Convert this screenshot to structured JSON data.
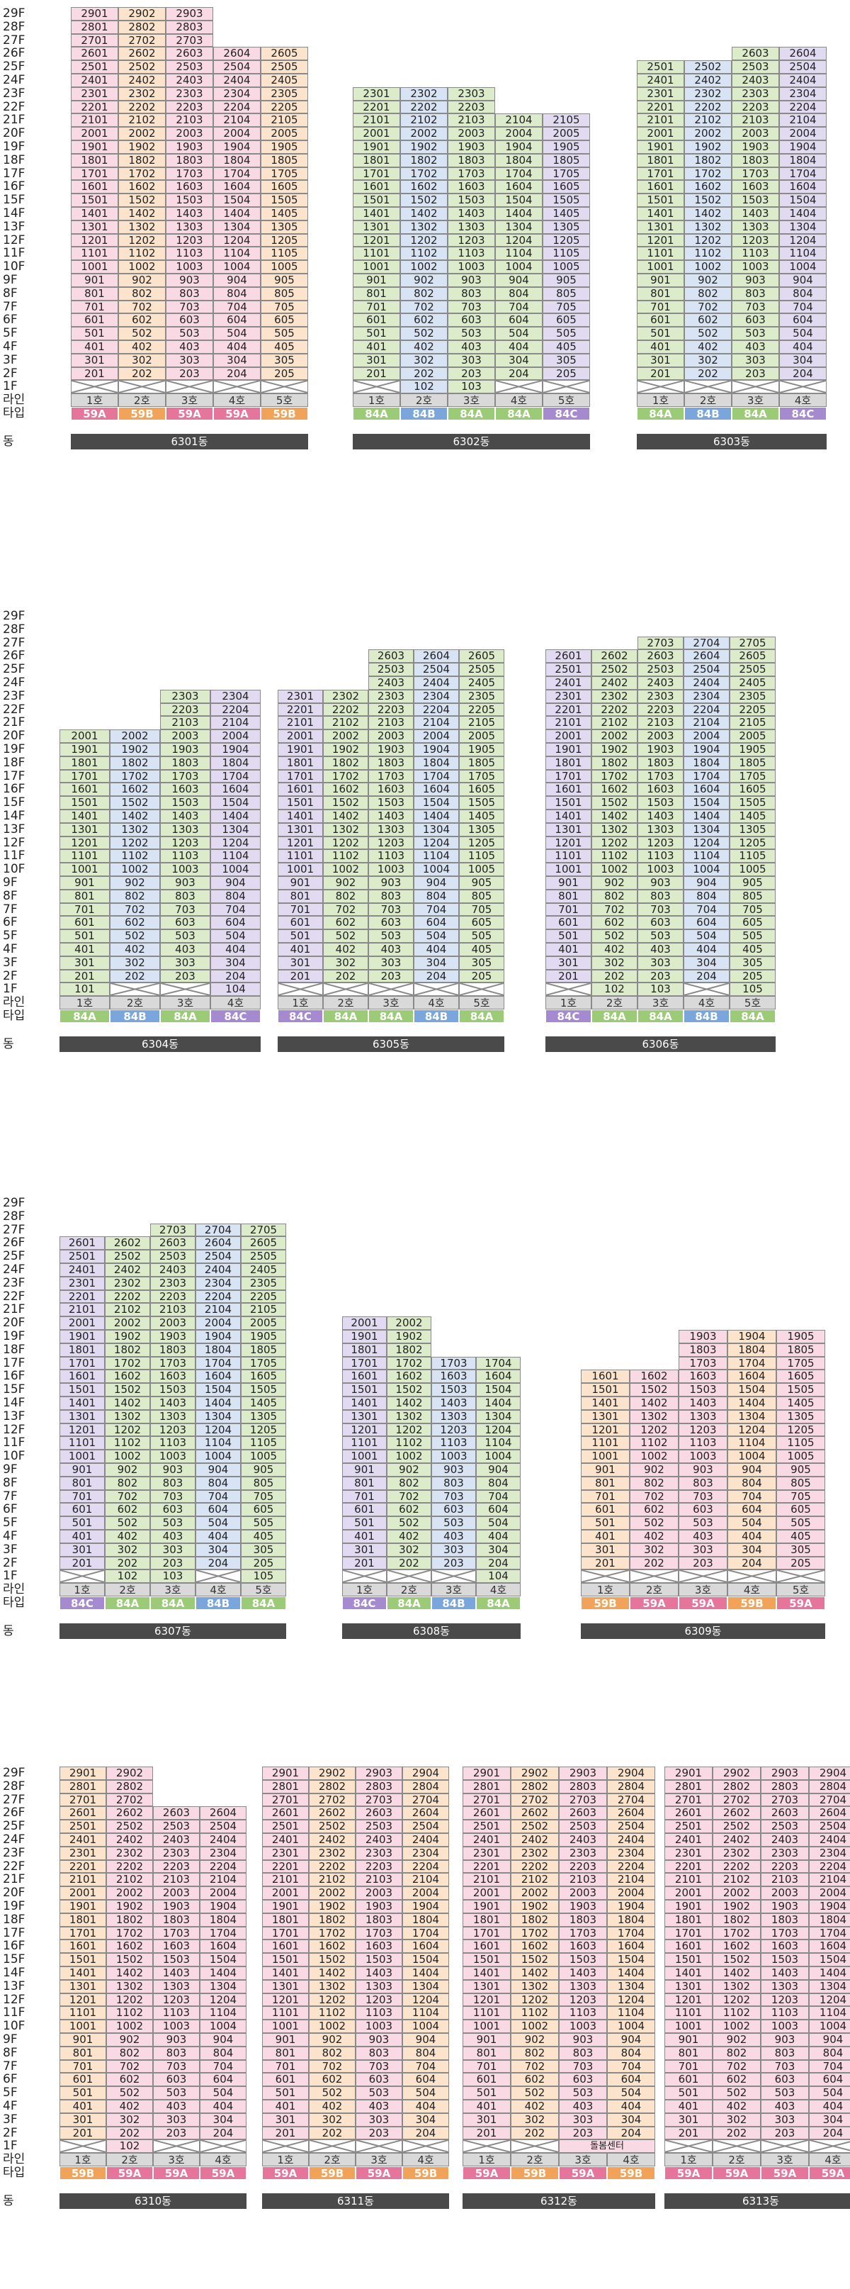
{
  "labels": {
    "line": "라인",
    "type": "타입",
    "dong": "동"
  },
  "colors": {
    "59A": "#e6759b",
    "59B": "#f2a35a",
    "84A": "#9ccb78",
    "84B": "#7aa6dc",
    "84C": "#a68ad0"
  },
  "floor_range": [
    1,
    29
  ],
  "sections": [
    {
      "buildings": [
        {
          "dong": "6301동",
          "lines": [
            {
              "ho": "1호",
              "type": "59A",
              "max": 29,
              "voidFloors": [
                1
              ]
            },
            {
              "ho": "2호",
              "type": "59B",
              "max": 29,
              "voidFloors": [
                1
              ]
            },
            {
              "ho": "3호",
              "type": "59A",
              "max": 29,
              "voidFloors": [
                1
              ]
            },
            {
              "ho": "4호",
              "type": "59A",
              "max": 26,
              "voidFloors": [
                1
              ]
            },
            {
              "ho": "5호",
              "type": "59B",
              "max": 26,
              "voidFloors": [
                1
              ]
            }
          ]
        },
        {
          "dong": "6302동",
          "lines": [
            {
              "ho": "1호",
              "type": "84A",
              "max": 23,
              "voidFloors": [
                1
              ]
            },
            {
              "ho": "2호",
              "type": "84B",
              "max": 23,
              "voidFloors": []
            },
            {
              "ho": "3호",
              "type": "84A",
              "max": 23,
              "voidFloors": []
            },
            {
              "ho": "4호",
              "type": "84A",
              "max": 21,
              "voidFloors": [
                1
              ]
            },
            {
              "ho": "5호",
              "type": "84C",
              "max": 21,
              "voidFloors": [
                1
              ]
            }
          ]
        },
        {
          "dong": "6303동",
          "lines": [
            {
              "ho": "1호",
              "type": "84A",
              "max": 25,
              "voidFloors": [
                1
              ]
            },
            {
              "ho": "2호",
              "type": "84B",
              "max": 25,
              "voidFloors": [
                1
              ]
            },
            {
              "ho": "3호",
              "type": "84A",
              "max": 26,
              "voidFloors": [
                1
              ]
            },
            {
              "ho": "4호",
              "type": "84C",
              "max": 26,
              "voidFloors": [
                1
              ]
            }
          ]
        }
      ]
    },
    {
      "buildings": [
        {
          "dong": "6304동",
          "lines": [
            {
              "ho": "1호",
              "type": "84A",
              "max": 20,
              "voidFloors": []
            },
            {
              "ho": "2호",
              "type": "84B",
              "max": 20,
              "voidFloors": [
                1
              ]
            },
            {
              "ho": "3호",
              "type": "84A",
              "max": 23,
              "voidFloors": [
                1
              ]
            },
            {
              "ho": "4호",
              "type": "84C",
              "max": 23,
              "voidFloors": []
            }
          ]
        },
        {
          "dong": "6305동",
          "lines": [
            {
              "ho": "1호",
              "type": "84C",
              "max": 23,
              "voidFloors": [
                1
              ]
            },
            {
              "ho": "2호",
              "type": "84A",
              "max": 23,
              "voidFloors": [
                1
              ]
            },
            {
              "ho": "3호",
              "type": "84A",
              "max": 26,
              "voidFloors": [
                1
              ]
            },
            {
              "ho": "4호",
              "type": "84B",
              "max": 26,
              "voidFloors": [
                1
              ]
            },
            {
              "ho": "5호",
              "type": "84A",
              "max": 26,
              "voidFloors": [
                1
              ]
            }
          ]
        },
        {
          "dong": "6306동",
          "lines": [
            {
              "ho": "1호",
              "type": "84C",
              "max": 26,
              "voidFloors": [
                1
              ]
            },
            {
              "ho": "2호",
              "type": "84A",
              "max": 26,
              "voidFloors": []
            },
            {
              "ho": "3호",
              "type": "84A",
              "max": 27,
              "voidFloors": []
            },
            {
              "ho": "4호",
              "type": "84B",
              "max": 27,
              "voidFloors": [
                1
              ]
            },
            {
              "ho": "5호",
              "type": "84A",
              "max": 27,
              "voidFloors": []
            }
          ]
        }
      ]
    },
    {
      "buildings": [
        {
          "dong": "6307동",
          "lines": [
            {
              "ho": "1호",
              "type": "84C",
              "max": 26,
              "voidFloors": [
                1
              ]
            },
            {
              "ho": "2호",
              "type": "84A",
              "max": 26,
              "voidFloors": []
            },
            {
              "ho": "3호",
              "type": "84A",
              "max": 27,
              "voidFloors": []
            },
            {
              "ho": "4호",
              "type": "84B",
              "max": 27,
              "voidFloors": [
                1
              ]
            },
            {
              "ho": "5호",
              "type": "84A",
              "max": 27,
              "voidFloors": []
            }
          ]
        },
        {
          "dong": "6308동",
          "lines": [
            {
              "ho": "1호",
              "type": "84C",
              "max": 20,
              "voidFloors": [
                1
              ]
            },
            {
              "ho": "2호",
              "type": "84A",
              "max": 20,
              "voidFloors": [
                1
              ]
            },
            {
              "ho": "3호",
              "type": "84B",
              "max": 17,
              "voidFloors": [
                1
              ]
            },
            {
              "ho": "4호",
              "type": "84A",
              "max": 17,
              "voidFloors": []
            }
          ]
        },
        {
          "dong": "6309동",
          "lines": [
            {
              "ho": "1호",
              "type": "59B",
              "max": 16,
              "voidFloors": [
                1
              ]
            },
            {
              "ho": "2호",
              "type": "59A",
              "max": 16,
              "voidFloors": [
                1
              ]
            },
            {
              "ho": "3호",
              "type": "59A",
              "max": 19,
              "voidFloors": [
                1
              ]
            },
            {
              "ho": "4호",
              "type": "59B",
              "max": 19,
              "voidFloors": [
                1
              ]
            },
            {
              "ho": "5호",
              "type": "59A",
              "max": 19,
              "voidFloors": [
                1
              ]
            }
          ]
        }
      ]
    },
    {
      "buildings": [
        {
          "dong": "6310동",
          "lines": [
            {
              "ho": "1호",
              "type": "59B",
              "max": 29,
              "voidFloors": [
                1
              ]
            },
            {
              "ho": "2호",
              "type": "59A",
              "max": 29,
              "voidFloors": []
            },
            {
              "ho": "3호",
              "type": "59A",
              "max": 26,
              "voidFloors": [
                1
              ]
            },
            {
              "ho": "4호",
              "type": "59A",
              "max": 26,
              "voidFloors": [
                1
              ]
            }
          ]
        },
        {
          "dong": "6311동",
          "lines": [
            {
              "ho": "1호",
              "type": "59A",
              "max": 29,
              "voidFloors": [
                1
              ]
            },
            {
              "ho": "2호",
              "type": "59B",
              "max": 29,
              "voidFloors": [
                1
              ]
            },
            {
              "ho": "3호",
              "type": "59A",
              "max": 29,
              "voidFloors": [
                1
              ]
            },
            {
              "ho": "4호",
              "type": "59B",
              "max": 29,
              "voidFloors": [
                1
              ]
            }
          ]
        },
        {
          "dong": "6312동",
          "lines": [
            {
              "ho": "1호",
              "type": "59A",
              "max": 29,
              "voidFloors": [
                1
              ]
            },
            {
              "ho": "2호",
              "type": "59B",
              "max": 29,
              "voidFloors": [
                1
              ]
            },
            {
              "ho": "3호",
              "type": "59A",
              "max": 29,
              "voidFloors": [],
              "special": {
                "floor": 1,
                "label": "돌봄센터",
                "span": 2
              }
            },
            {
              "ho": "4호",
              "type": "59B",
              "max": 29,
              "voidFloors": []
            }
          ]
        },
        {
          "dong": "6313동",
          "lines": [
            {
              "ho": "1호",
              "type": "59A",
              "max": 29,
              "voidFloors": [
                1
              ]
            },
            {
              "ho": "2호",
              "type": "59A",
              "max": 29,
              "voidFloors": [
                1
              ]
            },
            {
              "ho": "3호",
              "type": "59A",
              "max": 29,
              "voidFloors": [
                1
              ]
            },
            {
              "ho": "4호",
              "type": "59A",
              "max": 29,
              "voidFloors": [
                1
              ]
            }
          ]
        }
      ]
    }
  ]
}
